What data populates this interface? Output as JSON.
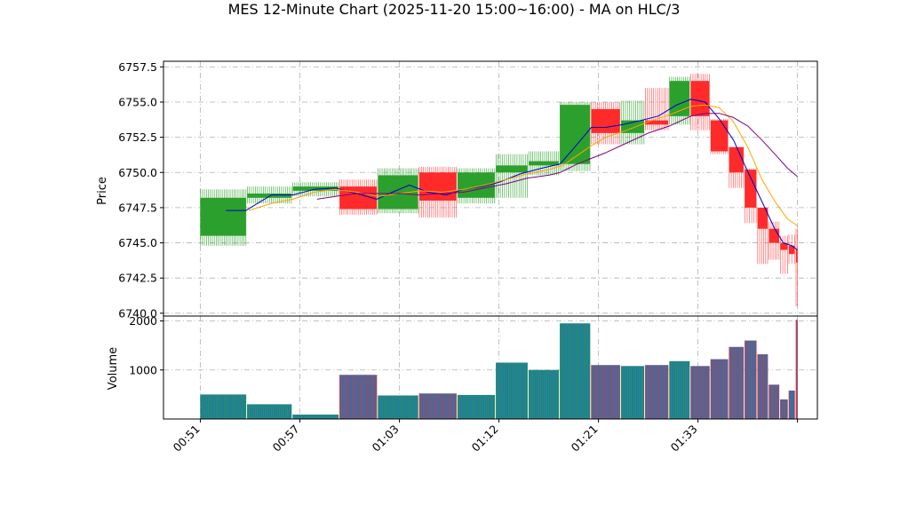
{
  "chart_data": {
    "type": "candlestick",
    "title": "MES 12-Minute Chart (2025-11-20 15:00~16:00) - MA on HLC/3",
    "price_panel": {
      "ylabel": "Price",
      "ylim": [
        6739.8,
        6757.9
      ],
      "yticks": [
        6740.0,
        6742.5,
        6745.0,
        6747.5,
        6750.0,
        6752.5,
        6755.0,
        6757.5
      ],
      "ytick_labels": [
        "6740.0",
        "6742.5",
        "6745.0",
        "6747.5",
        "6750.0",
        "6752.5",
        "6755.0",
        "6757.5"
      ]
    },
    "volume_panel": {
      "ylabel": "Volume",
      "ylim": [
        0,
        2100
      ],
      "yticks": [
        1000,
        2000
      ],
      "ytick_labels": [
        "1000",
        "2000"
      ]
    },
    "xlim": [
      -2.6,
      43.4
    ],
    "xticks": [
      0,
      7,
      14,
      21,
      28,
      35,
      42
    ],
    "xtick_labels": [
      "00:51",
      "00:57",
      "01:03",
      "01:12",
      "01:21",
      "01:33",
      ""
    ],
    "grid": true,
    "colors": {
      "up": "#2ca02c",
      "down": "#ff2a2a",
      "up_wick": "#2ca02c",
      "down_wick": "#ff4444",
      "ma_fast": "#0000cc",
      "ma_mid": "#ffa500",
      "ma_slow": "#800080",
      "volume_fill": "#1f77b4",
      "volume_up_edge": "#2ca02c",
      "volume_down_edge": "#ff2a2a",
      "grid": "#b0b0b0"
    },
    "candles": [
      {
        "x0": 0.0,
        "x1": 3.2,
        "open": 6745.5,
        "close": 6748.2,
        "high": 6748.8,
        "low": 6744.8,
        "volume": 500
      },
      {
        "x0": 3.3,
        "x1": 6.4,
        "open": 6748.2,
        "close": 6748.5,
        "high": 6749.0,
        "low": 6747.8,
        "volume": 300
      },
      {
        "x0": 6.5,
        "x1": 9.7,
        "open": 6748.7,
        "close": 6749.0,
        "high": 6749.3,
        "low": 6748.3,
        "volume": 90
      },
      {
        "x0": 9.8,
        "x1": 12.4,
        "open": 6749.0,
        "close": 6747.4,
        "high": 6749.5,
        "low": 6747.0,
        "volume": 900
      },
      {
        "x0": 12.5,
        "x1": 15.3,
        "open": 6747.4,
        "close": 6749.8,
        "high": 6750.3,
        "low": 6747.1,
        "volume": 480
      },
      {
        "x0": 15.4,
        "x1": 18.0,
        "open": 6750.0,
        "close": 6748.0,
        "high": 6750.4,
        "low": 6746.8,
        "volume": 520
      },
      {
        "x0": 18.1,
        "x1": 20.7,
        "open": 6748.2,
        "close": 6750.0,
        "high": 6750.3,
        "low": 6747.8,
        "volume": 490
      },
      {
        "x0": 20.8,
        "x1": 23.0,
        "open": 6750.0,
        "close": 6750.5,
        "high": 6751.3,
        "low": 6748.2,
        "volume": 1150
      },
      {
        "x0": 23.1,
        "x1": 25.2,
        "open": 6750.5,
        "close": 6750.8,
        "high": 6751.5,
        "low": 6749.8,
        "volume": 1000
      },
      {
        "x0": 25.3,
        "x1": 27.4,
        "open": 6750.6,
        "close": 6754.8,
        "high": 6755.0,
        "low": 6750.1,
        "volume": 1950
      },
      {
        "x0": 27.5,
        "x1": 29.5,
        "open": 6754.5,
        "close": 6752.8,
        "high": 6755.0,
        "low": 6752.0,
        "volume": 1100
      },
      {
        "x0": 29.6,
        "x1": 31.2,
        "open": 6752.8,
        "close": 6753.7,
        "high": 6755.1,
        "low": 6752.0,
        "volume": 1080
      },
      {
        "x0": 31.3,
        "x1": 32.9,
        "open": 6753.7,
        "close": 6753.4,
        "high": 6756.0,
        "low": 6753.0,
        "volume": 1100
      },
      {
        "x0": 33.0,
        "x1": 34.4,
        "open": 6754.0,
        "close": 6756.5,
        "high": 6756.8,
        "low": 6753.4,
        "volume": 1180
      },
      {
        "x0": 34.5,
        "x1": 35.8,
        "open": 6756.5,
        "close": 6754.0,
        "high": 6757.0,
        "low": 6753.0,
        "volume": 1080
      },
      {
        "x0": 35.9,
        "x1": 37.1,
        "open": 6753.7,
        "close": 6751.5,
        "high": 6753.8,
        "low": 6751.3,
        "volume": 1220
      },
      {
        "x0": 37.2,
        "x1": 38.2,
        "open": 6751.8,
        "close": 6750.0,
        "high": 6751.8,
        "low": 6748.9,
        "volume": 1470
      },
      {
        "x0": 38.3,
        "x1": 39.1,
        "open": 6750.2,
        "close": 6747.5,
        "high": 6750.3,
        "low": 6746.4,
        "volume": 1600
      },
      {
        "x0": 39.2,
        "x1": 39.9,
        "open": 6747.5,
        "close": 6746.0,
        "high": 6747.5,
        "low": 6743.5,
        "volume": 1320
      },
      {
        "x0": 40.0,
        "x1": 40.7,
        "open": 6746.0,
        "close": 6745.0,
        "high": 6746.5,
        "low": 6743.8,
        "volume": 700
      },
      {
        "x0": 40.8,
        "x1": 41.3,
        "open": 6745.0,
        "close": 6744.5,
        "high": 6745.5,
        "low": 6742.8,
        "volume": 400
      },
      {
        "x0": 41.4,
        "x1": 41.8,
        "open": 6744.8,
        "close": 6744.2,
        "high": 6745.6,
        "low": 6743.5,
        "volume": 580
      },
      {
        "x0": 41.9,
        "x1": 42.0,
        "open": 6744.5,
        "close": 6743.6,
        "high": 6746.0,
        "low": 6740.5,
        "volume": 2020
      }
    ],
    "series": [
      {
        "key": "ma_fast",
        "x": [
          1.8,
          3.2,
          5.0,
          6.5,
          8.0,
          9.5,
          11.0,
          12.4,
          13.5,
          14.7,
          16.0,
          17.3,
          18.5,
          19.8,
          21.0,
          22.5,
          24.0,
          25.3,
          26.5,
          27.5,
          28.5,
          29.7,
          31.0,
          32.2,
          33.5,
          34.5,
          35.5,
          36.5,
          37.5,
          38.3,
          39.0,
          39.7,
          40.4,
          41.0,
          41.6,
          42.0
        ],
        "y": [
          6747.3,
          6747.3,
          6748.4,
          6748.4,
          6748.8,
          6748.9,
          6748.5,
          6748.1,
          6748.6,
          6749.1,
          6748.6,
          6748.4,
          6748.8,
          6749.0,
          6749.3,
          6749.9,
          6750.3,
          6750.6,
          6752.0,
          6753.2,
          6753.2,
          6753.4,
          6753.7,
          6754.0,
          6754.8,
          6755.2,
          6755.0,
          6753.8,
          6752.3,
          6750.5,
          6749.0,
          6747.5,
          6746.0,
          6745.0,
          6744.8,
          6744.5
        ]
      },
      {
        "key": "ma_mid",
        "x": [
          3.4,
          5.0,
          6.5,
          8.0,
          9.5,
          11.0,
          12.5,
          14.0,
          15.5,
          17.0,
          18.5,
          20.0,
          21.5,
          23.0,
          24.5,
          25.5,
          26.5,
          27.5,
          28.5,
          30.0,
          31.5,
          33.0,
          34.5,
          35.5,
          36.5,
          37.5,
          38.5,
          39.5,
          40.5,
          41.3,
          42.0
        ],
        "y": [
          6747.3,
          6747.8,
          6748.1,
          6748.6,
          6748.8,
          6748.6,
          6748.3,
          6748.5,
          6748.7,
          6748.6,
          6748.8,
          6749.1,
          6749.5,
          6749.9,
          6750.2,
          6750.5,
          6751.2,
          6751.9,
          6752.5,
          6753.0,
          6753.6,
          6754.1,
          6754.7,
          6754.8,
          6754.6,
          6753.6,
          6751.8,
          6749.5,
          6747.8,
          6746.7,
          6746.2
        ]
      },
      {
        "key": "ma_slow",
        "x": [
          8.2,
          9.5,
          11.0,
          12.5,
          14.0,
          15.5,
          17.0,
          18.5,
          20.0,
          21.5,
          23.0,
          24.5,
          25.3,
          26.5,
          27.5,
          28.5,
          30.0,
          31.5,
          33.0,
          34.5,
          35.5,
          36.5,
          37.5,
          38.5,
          39.5,
          40.5,
          41.3,
          42.0
        ],
        "y": [
          6748.1,
          6748.3,
          6748.5,
          6748.5,
          6748.5,
          6748.4,
          6748.5,
          6748.6,
          6748.9,
          6749.2,
          6749.6,
          6749.8,
          6750.0,
          6750.6,
          6751.0,
          6751.4,
          6752.1,
          6752.8,
          6753.3,
          6754.0,
          6754.2,
          6754.2,
          6753.9,
          6753.3,
          6752.3,
          6751.2,
          6750.3,
          6749.7
        ]
      }
    ]
  }
}
